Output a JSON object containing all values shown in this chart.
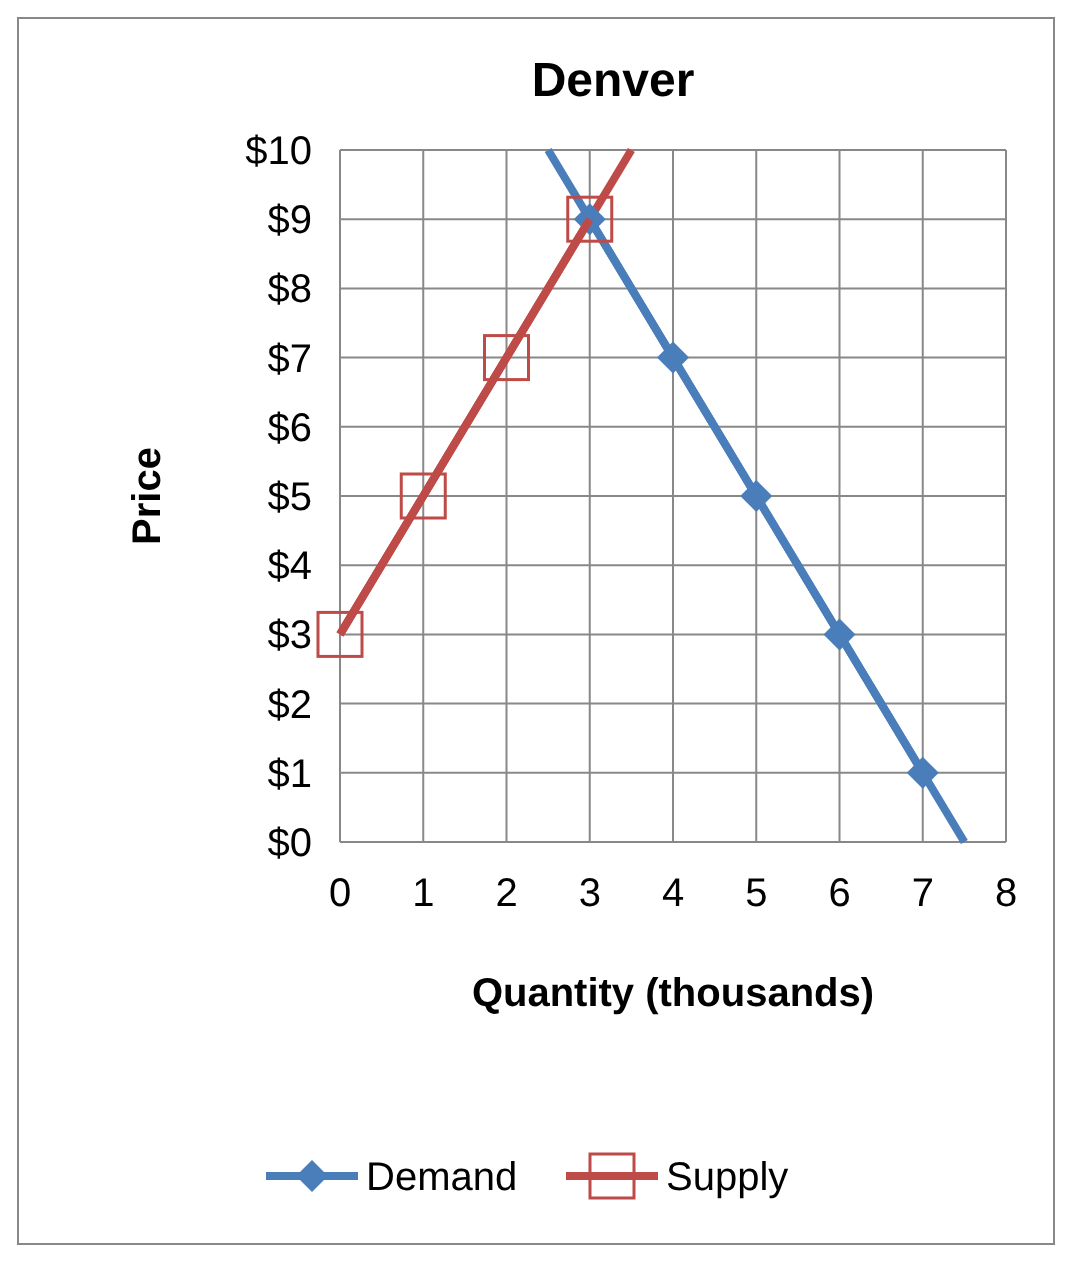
{
  "chart_data": {
    "type": "line",
    "title": "Denver",
    "xlabel": "Quantity (thousands)",
    "ylabel": "Price",
    "xlim": [
      0,
      8
    ],
    "xticks": [
      0,
      1,
      2,
      3,
      4,
      5,
      6,
      7,
      8
    ],
    "ylim": [
      0,
      10
    ],
    "yticks": [
      {
        "value": 0,
        "label": "$0"
      },
      {
        "value": 1,
        "label": "$1"
      },
      {
        "value": 2,
        "label": "$2"
      },
      {
        "value": 3,
        "label": "$3"
      },
      {
        "value": 4,
        "label": "$4"
      },
      {
        "value": 5,
        "label": "$5"
      },
      {
        "value": 6,
        "label": "$6"
      },
      {
        "value": 7,
        "label": "$7"
      },
      {
        "value": 8,
        "label": "$8"
      },
      {
        "value": 9,
        "label": "$9"
      },
      {
        "value": 10,
        "label": "$10"
      }
    ],
    "grid": true,
    "legend": "bottom",
    "series": [
      {
        "type": "line",
        "color": "#4a7ebb",
        "x": [
          2.5,
          7.5
        ],
        "values": [
          10,
          0
        ]
      },
      {
        "type": "line",
        "color": "#be4b48",
        "x": [
          0,
          3.5
        ],
        "values": [
          3,
          10
        ]
      },
      {
        "name": "Demand",
        "color": "#4a7ebb",
        "x": [
          3,
          4,
          5,
          6,
          7
        ],
        "values": [
          9,
          7,
          5,
          3,
          1
        ],
        "marker": "diamond"
      },
      {
        "name": "Supply",
        "color": "#be4b48",
        "x": [
          0,
          1,
          2,
          3
        ],
        "values": [
          3,
          5,
          7,
          9
        ],
        "marker": "square"
      }
    ]
  }
}
